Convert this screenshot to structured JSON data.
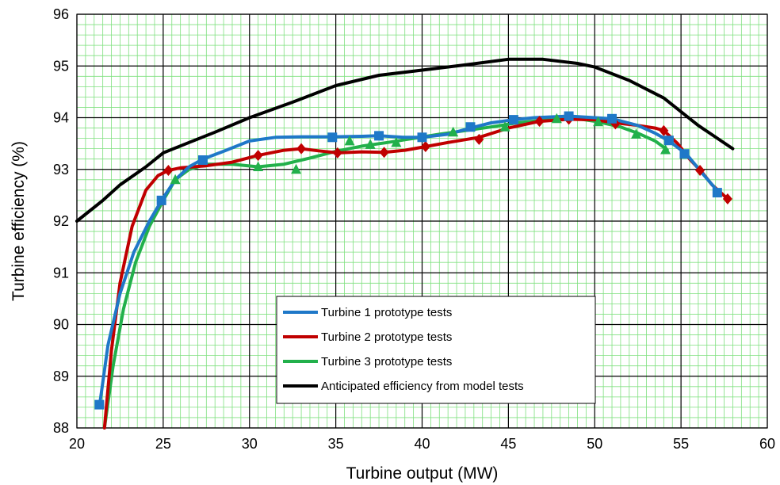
{
  "chart_data": {
    "type": "line",
    "xlabel": "Turbine output (MW)",
    "ylabel": "Turbine efficiency (%)",
    "xlim": [
      20,
      60
    ],
    "ylim": [
      88,
      96
    ],
    "xticks": [
      "20",
      "25",
      "30",
      "35",
      "40",
      "45",
      "50",
      "55",
      "60"
    ],
    "yticks": [
      "88",
      "89",
      "90",
      "91",
      "92",
      "93",
      "94",
      "95",
      "96"
    ],
    "major_grid": true,
    "minor_grid": true,
    "minor_grid_color": "#7fe07f",
    "legend_position": "bottom-center",
    "series": [
      {
        "name": "Turbine 1 prototype tests",
        "color": "#1f78c8",
        "marker": "square",
        "curve": [
          [
            21.3,
            88.4
          ],
          [
            21.8,
            89.6
          ],
          [
            22.5,
            90.6
          ],
          [
            23.3,
            91.4
          ],
          [
            24.2,
            92.0
          ],
          [
            25.0,
            92.45
          ],
          [
            25.7,
            92.8
          ],
          [
            26.5,
            93.05
          ],
          [
            27.3,
            93.2
          ],
          [
            28.5,
            93.35
          ],
          [
            30.0,
            93.55
          ],
          [
            31.5,
            93.62
          ],
          [
            33.0,
            93.63
          ],
          [
            34.8,
            93.63
          ],
          [
            36.5,
            93.64
          ],
          [
            37.5,
            93.65
          ],
          [
            39.0,
            93.62
          ],
          [
            40.0,
            93.62
          ],
          [
            41.5,
            93.68
          ],
          [
            42.8,
            93.8
          ],
          [
            44.0,
            93.9
          ],
          [
            45.3,
            93.96
          ],
          [
            46.5,
            94.0
          ],
          [
            48.5,
            94.03
          ],
          [
            50.0,
            94.0
          ],
          [
            51.0,
            93.98
          ],
          [
            52.5,
            93.85
          ],
          [
            53.5,
            93.7
          ],
          [
            54.3,
            93.55
          ],
          [
            55.3,
            93.3
          ],
          [
            56.3,
            92.9
          ],
          [
            57.2,
            92.55
          ]
        ],
        "markers": [
          [
            21.3,
            88.45
          ],
          [
            24.9,
            92.4
          ],
          [
            27.3,
            93.18
          ],
          [
            34.8,
            93.62
          ],
          [
            37.5,
            93.65
          ],
          [
            40.0,
            93.62
          ],
          [
            42.8,
            93.82
          ],
          [
            45.3,
            93.96
          ],
          [
            48.5,
            94.03
          ],
          [
            51.0,
            93.98
          ],
          [
            54.3,
            93.56
          ],
          [
            55.2,
            93.3
          ],
          [
            57.1,
            92.55
          ]
        ]
      },
      {
        "name": "Turbine 2 prototype tests",
        "color": "#c00000",
        "marker": "diamond",
        "curve": [
          [
            21.6,
            88.0
          ],
          [
            22.0,
            89.5
          ],
          [
            22.5,
            90.8
          ],
          [
            23.2,
            91.9
          ],
          [
            24.0,
            92.6
          ],
          [
            24.7,
            92.88
          ],
          [
            25.3,
            92.98
          ],
          [
            26.0,
            93.03
          ],
          [
            27.5,
            93.07
          ],
          [
            29.0,
            93.14
          ],
          [
            30.5,
            93.27
          ],
          [
            32.0,
            93.37
          ],
          [
            33.0,
            93.4
          ],
          [
            34.0,
            93.36
          ],
          [
            35.1,
            93.32
          ],
          [
            36.5,
            93.34
          ],
          [
            37.8,
            93.33
          ],
          [
            39.0,
            93.37
          ],
          [
            40.2,
            93.44
          ],
          [
            41.5,
            93.52
          ],
          [
            43.3,
            93.62
          ],
          [
            45.0,
            93.8
          ],
          [
            46.8,
            93.93
          ],
          [
            48.5,
            93.97
          ],
          [
            50.0,
            93.96
          ],
          [
            51.2,
            93.9
          ],
          [
            52.5,
            93.85
          ],
          [
            53.5,
            93.8
          ],
          [
            54.0,
            93.75
          ],
          [
            54.8,
            93.5
          ],
          [
            55.5,
            93.2
          ],
          [
            56.2,
            92.95
          ],
          [
            56.8,
            92.7
          ],
          [
            57.7,
            92.43
          ]
        ],
        "markers": [
          [
            25.3,
            92.98
          ],
          [
            30.5,
            93.27
          ],
          [
            33.0,
            93.4
          ],
          [
            35.1,
            93.32
          ],
          [
            37.8,
            93.33
          ],
          [
            40.2,
            93.44
          ],
          [
            43.3,
            93.58
          ],
          [
            46.8,
            93.93
          ],
          [
            48.5,
            93.97
          ],
          [
            51.2,
            93.88
          ],
          [
            54.0,
            93.75
          ],
          [
            56.1,
            92.98
          ],
          [
            57.7,
            92.43
          ]
        ]
      },
      {
        "name": "Turbine 3 prototype tests",
        "color": "#22b04b",
        "marker": "triangle",
        "curve": [
          [
            21.6,
            88.0
          ],
          [
            22.1,
            89.2
          ],
          [
            22.7,
            90.3
          ],
          [
            23.4,
            91.2
          ],
          [
            24.2,
            91.9
          ],
          [
            25.0,
            92.4
          ],
          [
            25.7,
            92.8
          ],
          [
            26.5,
            93.0
          ],
          [
            27.5,
            93.1
          ],
          [
            29.0,
            93.1
          ],
          [
            30.5,
            93.05
          ],
          [
            32.0,
            93.1
          ],
          [
            33.5,
            93.22
          ],
          [
            35.0,
            93.35
          ],
          [
            36.5,
            93.45
          ],
          [
            38.0,
            93.52
          ],
          [
            39.5,
            93.6
          ],
          [
            41.0,
            93.68
          ],
          [
            42.5,
            93.75
          ],
          [
            44.0,
            93.82
          ],
          [
            45.5,
            93.9
          ],
          [
            47.0,
            93.95
          ],
          [
            48.0,
            93.98
          ],
          [
            49.0,
            93.98
          ],
          [
            50.2,
            93.92
          ],
          [
            51.5,
            93.82
          ],
          [
            52.5,
            93.7
          ],
          [
            53.5,
            93.55
          ],
          [
            54.2,
            93.38
          ]
        ],
        "markers": [
          [
            25.7,
            92.8
          ],
          [
            30.5,
            93.05
          ],
          [
            32.7,
            93.0
          ],
          [
            35.8,
            93.55
          ],
          [
            37.0,
            93.48
          ],
          [
            38.5,
            93.52
          ],
          [
            41.8,
            93.72
          ],
          [
            44.8,
            93.82
          ],
          [
            47.8,
            93.98
          ],
          [
            50.2,
            93.92
          ],
          [
            52.4,
            93.68
          ],
          [
            54.1,
            93.38
          ]
        ]
      },
      {
        "name": "Anticipated efficiency from model tests",
        "color": "#000000",
        "marker": "none",
        "curve": [
          [
            20.0,
            92.0
          ],
          [
            21.5,
            92.4
          ],
          [
            22.5,
            92.7
          ],
          [
            24.0,
            93.05
          ],
          [
            25.0,
            93.32
          ],
          [
            26.5,
            93.52
          ],
          [
            28.0,
            93.72
          ],
          [
            30.0,
            94.0
          ],
          [
            32.5,
            94.3
          ],
          [
            35.0,
            94.62
          ],
          [
            37.5,
            94.82
          ],
          [
            40.0,
            94.92
          ],
          [
            42.5,
            95.02
          ],
          [
            45.0,
            95.13
          ],
          [
            47.0,
            95.13
          ],
          [
            49.0,
            95.05
          ],
          [
            50.0,
            94.98
          ],
          [
            52.0,
            94.72
          ],
          [
            54.0,
            94.38
          ],
          [
            56.0,
            93.85
          ],
          [
            58.0,
            93.4
          ]
        ],
        "markers": []
      }
    ]
  }
}
